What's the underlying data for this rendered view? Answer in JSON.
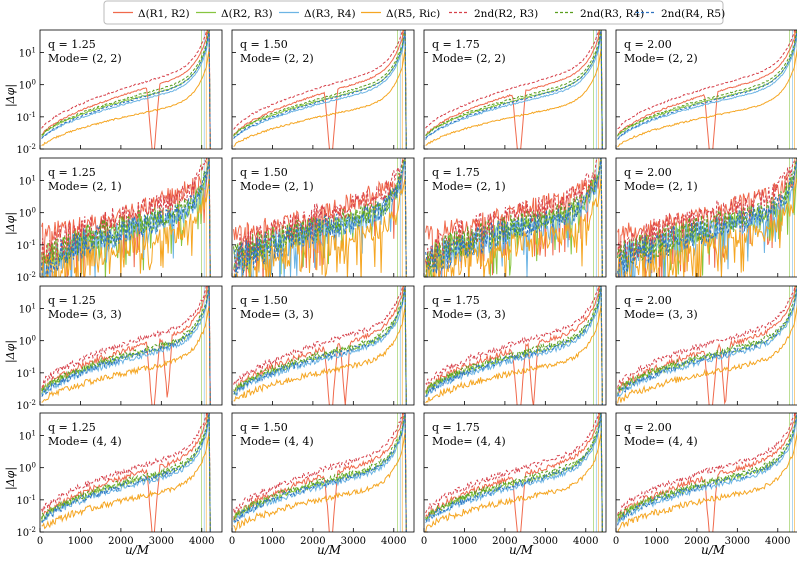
{
  "chart_data": {
    "type": "line",
    "title": "",
    "xlabel": "u/M",
    "ylabel": "|Δφ|",
    "xlim": [
      0,
      4500
    ],
    "ylim_log10": [
      -2,
      1.7
    ],
    "yscale": "log",
    "x_ticks": [
      0,
      1000,
      2000,
      3000,
      4000
    ],
    "y_ticks": [
      "10^-2",
      "10^-1",
      "10^0",
      "10^1"
    ],
    "columns": [
      {
        "q_label": "q = 1.25",
        "merger_u": 4150
      },
      {
        "q_label": "q = 1.50",
        "merger_u": 4250
      },
      {
        "q_label": "q = 1.75",
        "merger_u": 4350
      },
      {
        "q_label": "q = 2.00",
        "merger_u": 4450
      }
    ],
    "rows": [
      {
        "mode_label": "Mode= (2, 2)",
        "noise": "low"
      },
      {
        "mode_label": "Mode= (2, 1)",
        "noise": "high"
      },
      {
        "mode_label": "Mode= (3, 3)",
        "noise": "medium"
      },
      {
        "mode_label": "Mode= (4, 4)",
        "noise": "medium"
      }
    ],
    "legend": {
      "placement": "top-center",
      "entries": [
        {
          "label": "Δ(R1, R2)",
          "color": "#f0694c",
          "style": "solid"
        },
        {
          "label": "Δ(R2, R3)",
          "color": "#87c540",
          "style": "solid"
        },
        {
          "label": "Δ(R3, R4)",
          "color": "#6cb4e4",
          "style": "solid"
        },
        {
          "label": "Δ(R5, Ric)",
          "color": "#f5a623",
          "style": "solid"
        },
        {
          "label": "2nd(R2, R3)",
          "color": "#d6404a",
          "style": "dashed"
        },
        {
          "label": "2nd(R3, R4)",
          "color": "#5a9e1e",
          "style": "dashed"
        },
        {
          "label": "2nd(R4, R5)",
          "color": "#2e72c0",
          "style": "dashed"
        }
      ]
    },
    "series_profiles": [
      {
        "name": "Δ(R1, R2)",
        "start_log": -1.7,
        "end_log": 0.4,
        "note": "deep dips near u≈2300-2800"
      },
      {
        "name": "Δ(R2, R3)",
        "start_log": -1.7,
        "end_log": 0.1
      },
      {
        "name": "Δ(R3, R4)",
        "start_log": -1.8,
        "end_log": 0.0
      },
      {
        "name": "Δ(R5, Ric)",
        "start_log": -2.0,
        "end_log": -0.5
      },
      {
        "name": "2nd(R2, R3)",
        "start_log": -1.5,
        "end_log": 0.6
      },
      {
        "name": "2nd(R3, R4)",
        "start_log": -1.7,
        "end_log": 0.2
      },
      {
        "name": "2nd(R4, R5)",
        "start_log": -1.8,
        "end_log": 0.1
      }
    ]
  }
}
